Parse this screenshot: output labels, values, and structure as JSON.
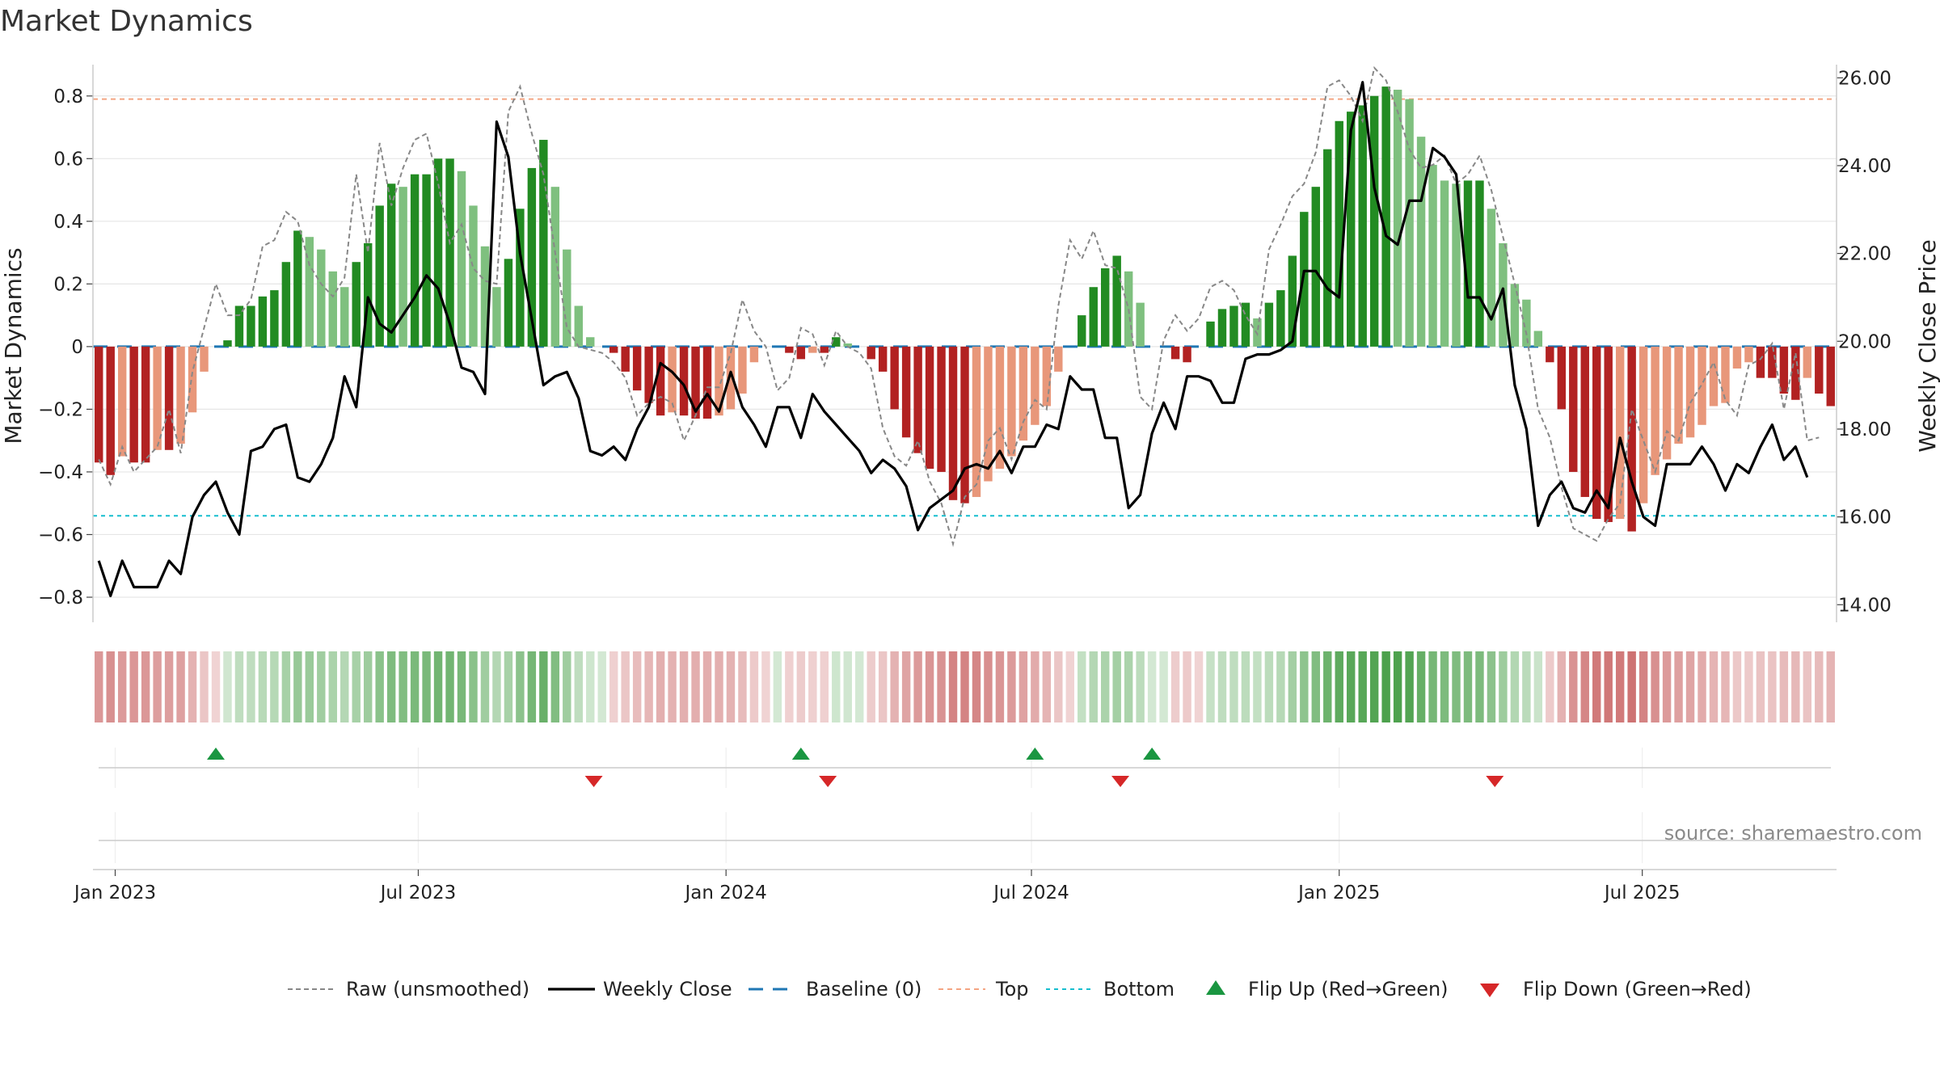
{
  "chart_data": {
    "type": "bar",
    "title": "Market Dynamics",
    "ylabel_left": "Market Dynamics",
    "ylabel_right": "Weekly Close Price",
    "ylim_left": [
      -0.88,
      0.9
    ],
    "ylim_right": [
      13.6,
      26.3
    ],
    "left_ticks": [
      "0.8",
      "0.6",
      "0.4",
      "0.2",
      "0",
      "−0.2",
      "−0.4",
      "−0.6",
      "−0.8"
    ],
    "left_tick_values": [
      0.8,
      0.6,
      0.4,
      0.2,
      0,
      -0.2,
      -0.4,
      -0.6,
      -0.8
    ],
    "right_ticks": [
      "26.00",
      "24.00",
      "22.00",
      "20.00",
      "18.00",
      "16.00",
      "14.00"
    ],
    "right_tick_values": [
      26,
      24,
      22,
      20,
      18,
      16,
      14
    ],
    "x_ticks": [
      "Jan 2023",
      "Jul 2023",
      "Jan 2024",
      "Jul 2024",
      "Jan 2025",
      "Jul 2025"
    ],
    "x_tick_weeks": [
      1.4,
      27.3,
      53.6,
      79.7,
      106.0,
      131.9
    ],
    "baseline": 0,
    "top_line": 0.79,
    "bottom_line": -0.54,
    "grid": true,
    "legend_position": "bottom",
    "source": "source: sharemaestro.com",
    "colors": {
      "strong_green": "#228b22",
      "light_green": "#7fc07f",
      "strong_red": "#b22222",
      "light_red": "#e8977a",
      "raw_line": "#888888",
      "close_line": "#000000",
      "baseline": "#1f77b4",
      "top": "#f4a582",
      "bottom": "#17becf",
      "flip_up": "#1a9641",
      "flip_down": "#d62728"
    },
    "bars": [
      -0.37,
      -0.41,
      -0.35,
      -0.37,
      -0.37,
      -0.33,
      -0.33,
      -0.31,
      -0.21,
      -0.08,
      0,
      0.02,
      0.13,
      0.13,
      0.16,
      0.18,
      0.27,
      0.37,
      0.35,
      0.31,
      0.24,
      0.19,
      0.27,
      0.33,
      0.45,
      0.52,
      0.51,
      0.55,
      0.55,
      0.6,
      0.6,
      0.56,
      0.45,
      0.32,
      0.19,
      0.28,
      0.44,
      0.57,
      0.66,
      0.51,
      0.31,
      0.13,
      0.03,
      0,
      -0.02,
      -0.08,
      -0.14,
      -0.18,
      -0.22,
      -0.21,
      -0.22,
      -0.23,
      -0.23,
      -0.22,
      -0.2,
      -0.15,
      -0.05,
      0,
      0,
      -0.02,
      -0.04,
      -0.02,
      -0.02,
      0.03,
      0.01,
      0,
      -0.04,
      -0.08,
      -0.2,
      -0.29,
      -0.34,
      -0.39,
      -0.4,
      -0.49,
      -0.5,
      -0.48,
      -0.43,
      -0.39,
      -0.35,
      -0.3,
      -0.25,
      -0.19,
      -0.08,
      0,
      0.1,
      0.19,
      0.25,
      0.29,
      0.24,
      0.14,
      0,
      0,
      -0.04,
      -0.05,
      0,
      0.08,
      0.12,
      0.13,
      0.14,
      0.09,
      0.14,
      0.18,
      0.29,
      0.43,
      0.51,
      0.63,
      0.72,
      0.75,
      0.77,
      0.8,
      0.83,
      0.82,
      0.79,
      0.67,
      0.58,
      0.53,
      0.52,
      0.53,
      0.53,
      0.44,
      0.33,
      0.2,
      0.15,
      0.05,
      -0.05,
      -0.2,
      -0.4,
      -0.48,
      -0.55,
      -0.56,
      -0.55,
      -0.59,
      -0.5,
      -0.41,
      -0.36,
      -0.31,
      -0.29,
      -0.25,
      -0.19,
      -0.18,
      -0.07,
      -0.05,
      -0.1,
      -0.1,
      -0.15,
      -0.17,
      -0.1,
      -0.15,
      -0.19
    ],
    "raw": [
      -0.36,
      -0.44,
      -0.32,
      -0.4,
      -0.36,
      -0.32,
      -0.2,
      -0.34,
      -0.08,
      0.06,
      0.2,
      0.1,
      0.1,
      0.15,
      0.32,
      0.34,
      0.43,
      0.4,
      0.26,
      0.2,
      0.16,
      0.22,
      0.55,
      0.3,
      0.65,
      0.45,
      0.57,
      0.66,
      0.68,
      0.52,
      0.33,
      0.39,
      0.25,
      0.21,
      0.2,
      0.75,
      0.83,
      0.68,
      0.55,
      0.3,
      0.06,
      0,
      -0.01,
      -0.02,
      -0.05,
      -0.1,
      -0.22,
      -0.18,
      -0.16,
      -0.18,
      -0.3,
      -0.22,
      -0.13,
      -0.13,
      -0.02,
      0.15,
      0.05,
      0,
      -0.14,
      -0.1,
      0.06,
      0.04,
      -0.06,
      0.05,
      0,
      -0.02,
      -0.07,
      -0.26,
      -0.35,
      -0.38,
      -0.3,
      -0.43,
      -0.5,
      -0.63,
      -0.48,
      -0.44,
      -0.3,
      -0.26,
      -0.36,
      -0.24,
      -0.17,
      -0.2,
      0.13,
      0.34,
      0.28,
      0.37,
      0.26,
      0.25,
      0.12,
      -0.16,
      -0.2,
      0.02,
      0.1,
      0.05,
      0.09,
      0.19,
      0.21,
      0.18,
      0.1,
      0.04,
      0.31,
      0.39,
      0.48,
      0.52,
      0.62,
      0.83,
      0.85,
      0.8,
      0.72,
      0.89,
      0.85,
      0.75,
      0.63,
      0.57,
      0.58,
      0.61,
      0.52,
      0.55,
      0.61,
      0.5,
      0.35,
      0.2,
      0.04,
      -0.2,
      -0.29,
      -0.45,
      -0.58,
      -0.6,
      -0.62,
      -0.55,
      -0.5,
      -0.2,
      -0.3,
      -0.4,
      -0.27,
      -0.3,
      -0.18,
      -0.12,
      -0.05,
      -0.17,
      -0.22,
      -0.06,
      -0.04,
      0.01,
      -0.2,
      -0.02,
      -0.3,
      -0.29
    ],
    "close": [
      15.0,
      14.2,
      15.0,
      14.4,
      14.4,
      14.4,
      15.0,
      14.7,
      16.0,
      16.5,
      16.8,
      16.1,
      15.6,
      17.5,
      17.6,
      18.0,
      18.1,
      16.9,
      16.8,
      17.2,
      17.8,
      19.2,
      18.5,
      21.0,
      20.4,
      20.2,
      20.6,
      21.0,
      21.5,
      21.2,
      20.4,
      19.4,
      19.3,
      18.8,
      25.0,
      24.2,
      22.0,
      20.5,
      19.0,
      19.2,
      19.3,
      18.7,
      17.5,
      17.4,
      17.6,
      17.3,
      18.0,
      18.5,
      19.5,
      19.3,
      19.0,
      18.4,
      18.8,
      18.4,
      19.3,
      18.5,
      18.1,
      17.6,
      18.5,
      18.5,
      17.8,
      18.8,
      18.4,
      18.1,
      17.8,
      17.5,
      17.0,
      17.3,
      17.1,
      16.7,
      15.7,
      16.2,
      16.4,
      16.6,
      17.1,
      17.2,
      17.1,
      17.5,
      17.0,
      17.6,
      17.6,
      18.1,
      18.0,
      19.2,
      18.9,
      18.9,
      17.8,
      17.8,
      16.2,
      16.5,
      17.9,
      18.6,
      18.0,
      19.2,
      19.2,
      19.1,
      18.6,
      18.6,
      19.6,
      19.7,
      19.7,
      19.8,
      20.0,
      21.6,
      21.6,
      21.2,
      21.0,
      24.8,
      25.9,
      23.5,
      22.4,
      22.2,
      23.2,
      23.2,
      24.4,
      24.2,
      23.8,
      21.0,
      21.0,
      20.5,
      21.2,
      19.0,
      18.0,
      15.8,
      16.5,
      16.8,
      16.2,
      16.1,
      16.6,
      16.2,
      17.8,
      16.8,
      16.0,
      15.8,
      17.2,
      17.2,
      17.2,
      17.6,
      17.2,
      16.6,
      17.2,
      17.0,
      17.6,
      18.1,
      17.3,
      17.6,
      16.9
    ],
    "flip_up_weeks": [
      10.0,
      60.0,
      80.0,
      90.0
    ],
    "flip_down_weeks": [
      42.3,
      62.3,
      87.3,
      119.3
    ]
  },
  "legend": {
    "raw": "Raw (unsmoothed)",
    "close": "Weekly Close",
    "baseline": "Baseline (0)",
    "top": "Top",
    "bottom": "Bottom",
    "flip_up": "Flip Up (Red→Green)",
    "flip_down": "Flip Down (Green→Red)"
  }
}
